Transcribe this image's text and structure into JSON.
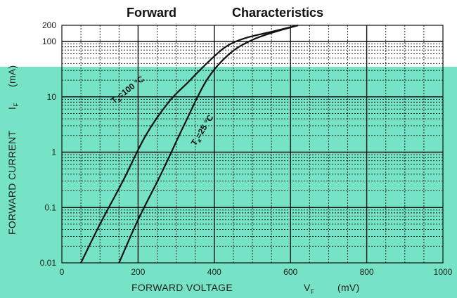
{
  "chart_data": {
    "type": "line",
    "title_left": "Forward",
    "title_right": "Characteristics",
    "xlabel": {
      "main": "FORWARD VOLTAGE",
      "symbol": "V",
      "sub": "F",
      "unit": "(mV)"
    },
    "ylabel": {
      "main": "FORWARD CURRENT",
      "symbol": "I",
      "sub": "F",
      "unit": "(mA)"
    },
    "x_scale": "linear",
    "y_scale": "log",
    "xlim": [
      0,
      1000
    ],
    "ylim": [
      0.01,
      200
    ],
    "x_ticks": [
      "0",
      "200",
      "400",
      "600",
      "800",
      "1000"
    ],
    "y_ticks": [
      "0.01",
      "0.1",
      "1",
      "10",
      "100",
      "200"
    ],
    "grid": true,
    "series": [
      {
        "name": "Ta=100°C",
        "label_main": "T",
        "label_sub": "a",
        "label_rest": "=100 °C",
        "x": [
          50,
          100,
          160,
          220,
          280,
          330,
          380,
          430,
          480,
          550,
          620
        ],
        "y": [
          0.01,
          0.05,
          0.3,
          2,
          8,
          18,
          40,
          80,
          120,
          160,
          200
        ]
      },
      {
        "name": "Ta=25°C",
        "label_main": "T",
        "label_sub": "a",
        "label_rest": "=25 °C",
        "x": [
          150,
          200,
          260,
          320,
          380,
          440,
          500,
          560,
          620
        ],
        "y": [
          0.01,
          0.06,
          0.4,
          3,
          20,
          60,
          110,
          160,
          200
        ]
      }
    ]
  }
}
